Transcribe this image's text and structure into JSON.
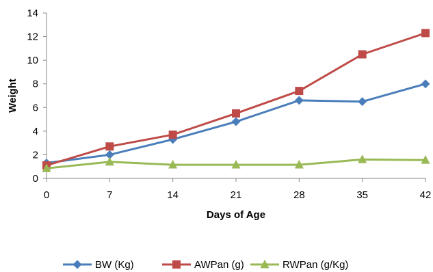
{
  "chart_data": {
    "type": "line",
    "title": "",
    "xlabel": "Days of Age",
    "ylabel": "Weight",
    "x": [
      0,
      7,
      14,
      21,
      28,
      35,
      42
    ],
    "xlim": [
      0,
      42
    ],
    "ylim": [
      0,
      14
    ],
    "yticks": [
      0,
      2,
      4,
      6,
      8,
      10,
      12,
      14
    ],
    "grid": false,
    "legend_position": "bottom",
    "series": [
      {
        "name": "BW (Kg)",
        "color": "#4A7EBB",
        "marker": "diamond",
        "values": [
          1.3,
          2.0,
          3.3,
          4.8,
          6.6,
          6.5,
          8.0
        ]
      },
      {
        "name": "AWPan (g)",
        "color": "#BE4B48",
        "marker": "square",
        "values": [
          1.1,
          2.7,
          3.7,
          5.5,
          7.4,
          10.5,
          12.3
        ]
      },
      {
        "name": "RWPan (g/Kg)",
        "color": "#98B954",
        "marker": "triangle",
        "values": [
          0.85,
          1.4,
          1.15,
          1.15,
          1.15,
          1.6,
          1.55
        ]
      }
    ]
  }
}
